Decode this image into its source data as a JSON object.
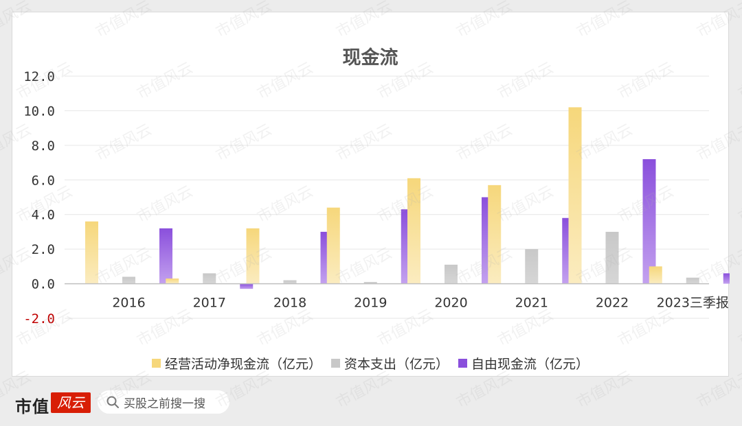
{
  "watermark_text": "市值风云",
  "footer": {
    "brand": "市值",
    "logo_text": "风云",
    "search_placeholder": "买股之前搜一搜"
  },
  "chart_data": {
    "type": "bar",
    "title": "现金流",
    "categories": [
      "2016",
      "2017",
      "2018",
      "2019",
      "2020",
      "2021",
      "2022",
      "2023三季报"
    ],
    "series": [
      {
        "name": "经营活动净现金流（亿元）",
        "color": "#f6d77b",
        "values": [
          3.6,
          0.3,
          3.2,
          4.4,
          6.1,
          5.7,
          10.2,
          1.0
        ]
      },
      {
        "name": "资本支出（亿元）",
        "color": "#c8c8c8",
        "values": [
          0.4,
          0.6,
          0.2,
          0.1,
          1.1,
          2.0,
          3.0,
          0.35
        ]
      },
      {
        "name": "自由现金流（亿元）",
        "color": "#8a4fdc",
        "values": [
          3.2,
          -0.3,
          3.0,
          4.3,
          5.0,
          3.8,
          7.2,
          0.6
        ]
      }
    ],
    "ylim": [
      -2.0,
      12.0
    ],
    "yticks": [
      "-2.0",
      "0.0",
      "2.0",
      "4.0",
      "6.0",
      "8.0",
      "10.0",
      "12.0"
    ],
    "negative_tick_color": "#c00000",
    "grid": true,
    "legend": "bottom"
  }
}
